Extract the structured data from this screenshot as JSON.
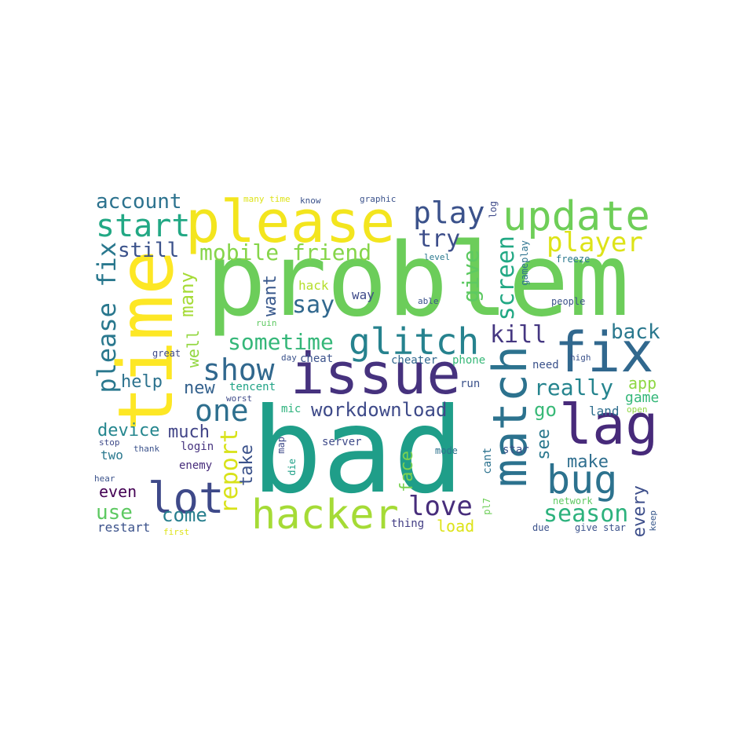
{
  "words": [
    {
      "text": "problem",
      "color": "#6ccd5a"
    },
    {
      "text": "bad",
      "color": "#1f9e89"
    },
    {
      "text": "time",
      "color": "#fde725"
    },
    {
      "text": "please",
      "color": "#f3e51e"
    },
    {
      "text": "issue",
      "color": "#46327e"
    },
    {
      "text": "match",
      "color": "#2c728e"
    },
    {
      "text": "fix",
      "color": "#31688e"
    },
    {
      "text": "lag",
      "color": "#472a7a"
    },
    {
      "text": "update",
      "color": "#6ece58"
    },
    {
      "text": "hacker",
      "color": "#a5db36"
    },
    {
      "text": "lot",
      "color": "#3e4989"
    },
    {
      "text": "bug",
      "color": "#2c728e"
    },
    {
      "text": "glitch",
      "color": "#26828e"
    },
    {
      "text": "show",
      "color": "#31688e"
    },
    {
      "text": "play",
      "color": "#3b528b"
    },
    {
      "text": "start",
      "color": "#22a884"
    },
    {
      "text": "player",
      "color": "#dde318"
    },
    {
      "text": "please fix",
      "color": "#2a788e"
    },
    {
      "text": "one",
      "color": "#2e6f8e"
    },
    {
      "text": "report",
      "color": "#d8e219"
    },
    {
      "text": "love",
      "color": "#472d7b"
    },
    {
      "text": "season",
      "color": "#2db27d"
    },
    {
      "text": "mobile friend",
      "color": "#86d549"
    },
    {
      "text": "sometime",
      "color": "#35b779"
    },
    {
      "text": "workdownload",
      "color": "#3e4a89"
    },
    {
      "text": "account",
      "color": "#2c728e"
    },
    {
      "text": "still",
      "color": "#3b528b"
    },
    {
      "text": "try",
      "color": "#3d4e8a"
    },
    {
      "text": "say",
      "color": "#31688e"
    },
    {
      "text": "give",
      "color": "#5ec962"
    },
    {
      "text": "screen",
      "color": "#22a884"
    },
    {
      "text": "kill",
      "color": "#453781"
    },
    {
      "text": "back",
      "color": "#2a788e"
    },
    {
      "text": "really",
      "color": "#25848e"
    },
    {
      "text": "many",
      "color": "#a5db36"
    },
    {
      "text": "want",
      "color": "#38588c"
    },
    {
      "text": "well",
      "color": "#93d741"
    },
    {
      "text": "new",
      "color": "#34618d"
    },
    {
      "text": "help",
      "color": "#2c728e"
    },
    {
      "text": "device",
      "color": "#24868e"
    },
    {
      "text": "much",
      "color": "#414487"
    },
    {
      "text": "take",
      "color": "#3b528b"
    },
    {
      "text": "face",
      "color": "#7ad151"
    },
    {
      "text": "see",
      "color": "#2a788e"
    },
    {
      "text": "make",
      "color": "#2e6e8e"
    },
    {
      "text": "every",
      "color": "#3d4e8a"
    },
    {
      "text": "come",
      "color": "#277f8e"
    },
    {
      "text": "use",
      "color": "#5ec962"
    },
    {
      "text": "even",
      "color": "#440154"
    },
    {
      "text": "go",
      "color": "#38b977"
    },
    {
      "text": "app",
      "color": "#8fd744"
    },
    {
      "text": "game",
      "color": "#35b779"
    },
    {
      "text": "land",
      "color": "#2e6e8e"
    },
    {
      "text": "load",
      "color": "#dde318"
    },
    {
      "text": "two",
      "color": "#2a788e"
    },
    {
      "text": "restart",
      "color": "#3b528b"
    },
    {
      "text": "enemy",
      "color": "#472d7b"
    },
    {
      "text": "login",
      "color": "#46337f"
    },
    {
      "text": "server",
      "color": "#3e4a89"
    },
    {
      "text": "thing",
      "color": "#433e85"
    },
    {
      "text": "cheater",
      "color": "#31688e"
    },
    {
      "text": "phone",
      "color": "#37b878"
    },
    {
      "text": "run",
      "color": "#3b528b"
    },
    {
      "text": "need",
      "color": "#3b528b"
    },
    {
      "text": "hack",
      "color": "#b5de2b"
    },
    {
      "text": "way",
      "color": "#3e4a89"
    },
    {
      "text": "cheat",
      "color": "#3b528b"
    },
    {
      "text": "tencent",
      "color": "#20a386"
    },
    {
      "text": "mic",
      "color": "#2db27d"
    },
    {
      "text": "die",
      "color": "#1fa188"
    },
    {
      "text": "map",
      "color": "#3e4a89"
    },
    {
      "text": "cant",
      "color": "#2c728e"
    },
    {
      "text": "star",
      "color": "#3b528b"
    },
    {
      "text": "mode",
      "color": "#2c728e"
    },
    {
      "text": "pl7",
      "color": "#6ece58"
    },
    {
      "text": "due",
      "color": "#3b528b"
    },
    {
      "text": "give star",
      "color": "#3b528b"
    },
    {
      "text": "keep",
      "color": "#38588c"
    },
    {
      "text": "network",
      "color": "#5ec962"
    },
    {
      "text": "high",
      "color": "#3b528b"
    },
    {
      "text": "open",
      "color": "#8fd744"
    },
    {
      "text": "people",
      "color": "#3b528b"
    },
    {
      "text": "freeze",
      "color": "#2a788e"
    },
    {
      "text": "level",
      "color": "#2a788e"
    },
    {
      "text": "gameplay",
      "color": "#2c728e"
    },
    {
      "text": "log",
      "color": "#3e4a89"
    },
    {
      "text": "able",
      "color": "#3b528b"
    },
    {
      "text": "many time",
      "color": "#dde318"
    },
    {
      "text": "know",
      "color": "#3b528b"
    },
    {
      "text": "graphic",
      "color": "#3b528b"
    },
    {
      "text": "ruin",
      "color": "#5ec962"
    },
    {
      "text": "day",
      "color": "#3b528b"
    },
    {
      "text": "great",
      "color": "#3e4a89"
    },
    {
      "text": "worst",
      "color": "#3e4a89"
    },
    {
      "text": "stop",
      "color": "#3e4a89"
    },
    {
      "text": "thank",
      "color": "#3b528b"
    },
    {
      "text": "hear",
      "color": "#3b528b"
    },
    {
      "text": "first",
      "color": "#dde318"
    }
  ]
}
